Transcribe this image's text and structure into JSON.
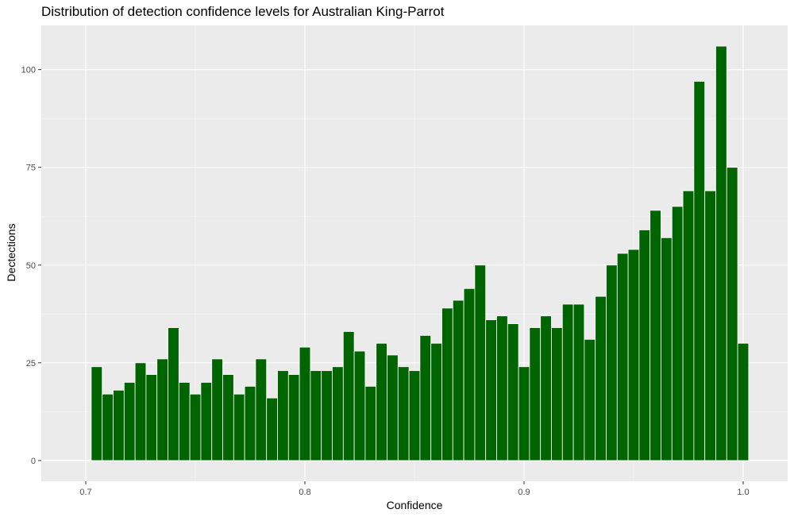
{
  "chart_data": {
    "type": "bar",
    "title": "Distribution of detection confidence levels for Australian King-Parrot",
    "xlabel": "Confidence",
    "ylabel": "Dectections",
    "xlim": [
      0.6797,
      1.0203
    ],
    "ylim": [
      -5.3,
      111.3
    ],
    "x_ticks": [
      0.7,
      0.8,
      0.9,
      1.0
    ],
    "x_tick_labels": [
      "0.7",
      "0.8",
      "0.9",
      "1.0"
    ],
    "y_ticks": [
      0,
      25,
      50,
      75,
      100
    ],
    "y_tick_labels": [
      "0",
      "25",
      "50",
      "75",
      "100"
    ],
    "grid": true,
    "bin_width": 0.005,
    "x": [
      0.705,
      0.71,
      0.715,
      0.72,
      0.725,
      0.73,
      0.735,
      0.74,
      0.745,
      0.75,
      0.755,
      0.76,
      0.765,
      0.77,
      0.775,
      0.78,
      0.785,
      0.79,
      0.795,
      0.8,
      0.805,
      0.81,
      0.815,
      0.82,
      0.825,
      0.83,
      0.835,
      0.84,
      0.845,
      0.85,
      0.855,
      0.86,
      0.865,
      0.87,
      0.875,
      0.88,
      0.885,
      0.89,
      0.895,
      0.9,
      0.905,
      0.91,
      0.915,
      0.92,
      0.925,
      0.93,
      0.935,
      0.94,
      0.945,
      0.95,
      0.955,
      0.96,
      0.965,
      0.97,
      0.975,
      0.98,
      0.985,
      0.99,
      0.995,
      1.0
    ],
    "values": [
      24,
      17,
      18,
      20,
      25,
      22,
      26,
      34,
      20,
      17,
      20,
      26,
      22,
      17,
      19,
      26,
      16,
      23,
      22,
      29,
      23,
      23,
      24,
      33,
      28,
      19,
      30,
      27,
      24,
      23,
      32,
      30,
      39,
      41,
      44,
      50,
      36,
      37,
      35,
      24,
      34,
      37,
      34,
      40,
      40,
      31,
      42,
      50,
      53,
      54,
      59,
      64,
      57,
      65,
      69,
      97,
      69,
      106,
      75,
      30
    ],
    "colors": {
      "bar_fill": "#006400",
      "bar_outline": "#ffffff",
      "panel_background": "#ebebeb",
      "grid_major": "#ffffff",
      "grid_minor": "#f5f5f5"
    }
  }
}
